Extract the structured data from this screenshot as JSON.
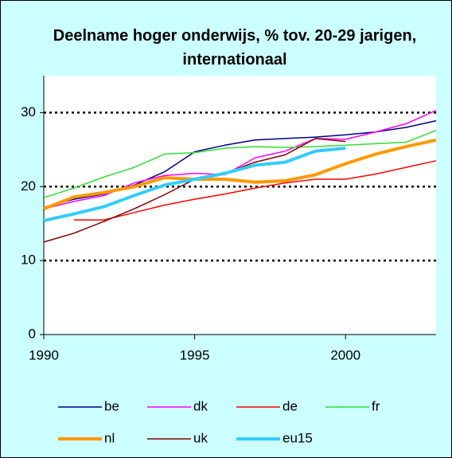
{
  "chart_data": {
    "type": "line",
    "title": "Deelname hoger onderwijs, % tov. 20-29 jarigen, internationaal",
    "x": [
      1990,
      1991,
      1992,
      1993,
      1994,
      1995,
      1996,
      1997,
      1998,
      1999,
      2000,
      2001,
      2002,
      2003
    ],
    "xlim": [
      1990,
      2003
    ],
    "xticks": [
      1990,
      1995,
      2000
    ],
    "ylim": [
      0,
      35
    ],
    "yticks": [
      0,
      10,
      20,
      30
    ],
    "grid": true,
    "legend": "bottom",
    "series": [
      {
        "name": "be",
        "color": "#000080",
        "line_width": 1.5,
        "values": [
          17.2,
          18.3,
          19,
          20.2,
          22,
          24.7,
          25.6,
          26.3,
          26.5,
          26.7,
          27,
          27.4,
          28,
          28.9
        ]
      },
      {
        "name": "dk",
        "color": "#ff00ff",
        "line_width": 1.5,
        "values": [
          17,
          18,
          18.8,
          20.5,
          21.5,
          21.8,
          21.6,
          23.9,
          24.8,
          26.5,
          26.4,
          27.4,
          28.5,
          30.3
        ]
      },
      {
        "name": "de",
        "color": "#ff0000",
        "line_width": 1.5,
        "values": [
          null,
          15.5,
          15.5,
          16.5,
          17.5,
          18.3,
          19,
          19.8,
          20.5,
          21,
          21,
          21.7,
          22.6,
          23.5
        ]
      },
      {
        "name": "fr",
        "color": "#33dd33",
        "line_width": 1.5,
        "values": [
          18.5,
          19.8,
          21.3,
          22.6,
          24.4,
          24.6,
          25.2,
          25.4,
          25.3,
          25.4,
          25.6,
          25.8,
          26,
          27.6
        ]
      },
      {
        "name": "nl",
        "color": "#ff9900",
        "line_width": 4,
        "values": [
          17,
          18.6,
          19.2,
          20,
          21.2,
          21,
          21,
          20.6,
          20.8,
          21.6,
          23.1,
          24.4,
          25.4,
          26.3
        ]
      },
      {
        "name": "uk",
        "color": "#800000",
        "line_width": 1.5,
        "values": [
          12.5,
          13.7,
          15.3,
          17,
          18.9,
          21,
          21.8,
          23.3,
          24.3,
          26.5,
          26.1,
          null,
          null,
          null
        ]
      },
      {
        "name": "eu15",
        "color": "#33ccff",
        "line_width": 4,
        "values": [
          15.4,
          16.3,
          17.3,
          18.8,
          20.2,
          21,
          21.8,
          22.9,
          23.3,
          24.8,
          25.2,
          null,
          null,
          null
        ]
      }
    ]
  }
}
